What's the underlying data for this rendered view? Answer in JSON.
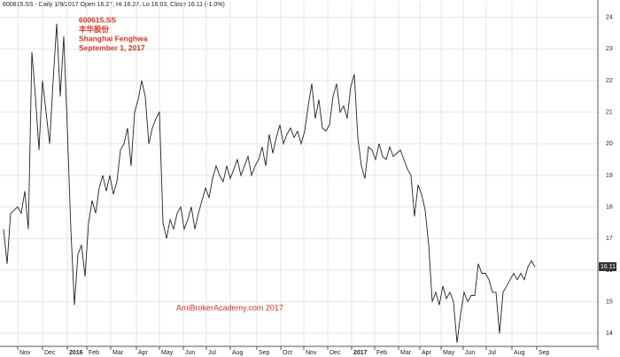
{
  "chart_data": {
    "type": "line",
    "title": "600615.SS - Daily 1/9/2017 Open 16.27, Hi 16.27, Lo 16.03, Close 16.11 (-1.0%)",
    "annotations": [
      "600615.SS",
      "丰华股份",
      "Shanghai Fenghwa",
      "September 1, 2017"
    ],
    "watermark": "AmiBrokerAcademy.com 2017",
    "color": "#222222",
    "annotation_color": "#e0301e",
    "grid": true,
    "values": [
      17.3,
      16.2,
      17.8,
      17.9,
      18.0,
      17.8,
      18.5,
      17.3,
      22.9,
      21.5,
      19.8,
      22.0,
      21.0,
      20.0,
      22.0,
      23.8,
      21.5,
      23.4,
      20.5,
      17.3,
      14.9,
      16.5,
      16.8,
      15.8,
      17.5,
      18.2,
      17.8,
      18.6,
      19.0,
      18.5,
      19.0,
      18.4,
      18.8,
      19.8,
      20.0,
      20.5,
      19.3,
      21.0,
      21.4,
      22.0,
      21.5,
      20.0,
      20.5,
      20.8,
      21.0,
      17.5,
      17.0,
      17.6,
      17.3,
      17.8,
      18.0,
      17.3,
      17.6,
      18.0,
      17.3,
      17.8,
      18.2,
      18.6,
      18.3,
      18.9,
      19.3,
      19.0,
      18.8,
      19.3,
      18.9,
      19.2,
      19.5,
      19.0,
      19.3,
      19.6,
      19.0,
      19.3,
      19.5,
      19.9,
      19.3,
      20.3,
      19.7,
      20.2,
      20.6,
      20.0,
      20.3,
      20.5,
      20.2,
      20.4,
      20.0,
      20.4,
      21.2,
      21.9,
      20.8,
      21.4,
      20.5,
      20.4,
      20.6,
      21.5,
      21.9,
      21.0,
      21.2,
      20.8,
      21.8,
      22.2,
      20.2,
      19.3,
      18.9,
      19.9,
      19.8,
      19.5,
      20.0,
      19.6,
      19.5,
      19.9,
      19.6,
      19.7,
      19.8,
      19.5,
      19.2,
      19.0,
      17.7,
      18.7,
      18.4,
      17.9,
      16.8,
      15.0,
      15.3,
      14.9,
      15.5,
      15.1,
      15.3,
      15.0,
      13.7,
      14.6,
      15.3,
      15.0,
      15.2,
      15.2,
      16.2,
      15.9,
      15.9,
      15.7,
      15.3,
      15.3,
      14.0,
      15.3,
      15.5,
      15.7,
      15.9,
      15.7,
      15.9,
      15.7,
      16.1,
      16.3,
      16.1
    ],
    "last_value": 16.11,
    "xlim": [
      -1,
      167.75
    ],
    "xticks": [
      {
        "value": 4,
        "label": "Nov"
      },
      {
        "value": 11,
        "label": "Dec"
      },
      {
        "value": 18,
        "label": "2016"
      },
      {
        "value": 23.5,
        "label": "Feb"
      },
      {
        "value": 30.25,
        "label": "Mar"
      },
      {
        "value": 37.5,
        "label": "Apr"
      },
      {
        "value": 44,
        "label": "May"
      },
      {
        "value": 50.75,
        "label": "Jun"
      },
      {
        "value": 57.25,
        "label": "Jul"
      },
      {
        "value": 64,
        "label": "Aug"
      },
      {
        "value": 71.5,
        "label": "Sep"
      },
      {
        "value": 78.25,
        "label": "Oct"
      },
      {
        "value": 84.75,
        "label": "Nov"
      },
      {
        "value": 91.5,
        "label": "Dec"
      },
      {
        "value": 98.25,
        "label": "2017"
      },
      {
        "value": 104.75,
        "label": "Feb"
      },
      {
        "value": 111.5,
        "label": "Mar"
      },
      {
        "value": 117.5,
        "label": "Apr"
      },
      {
        "value": 123.5,
        "label": "May"
      },
      {
        "value": 129.75,
        "label": "Jun"
      },
      {
        "value": 136.25,
        "label": "Jul"
      },
      {
        "value": 143.5,
        "label": "Aug"
      },
      {
        "value": 150.5,
        "label": "Sep"
      }
    ],
    "ylim": [
      13.7,
      24.27
    ],
    "yticks": [
      14,
      15,
      16,
      17,
      18,
      19,
      20,
      21,
      22,
      23,
      24
    ]
  }
}
